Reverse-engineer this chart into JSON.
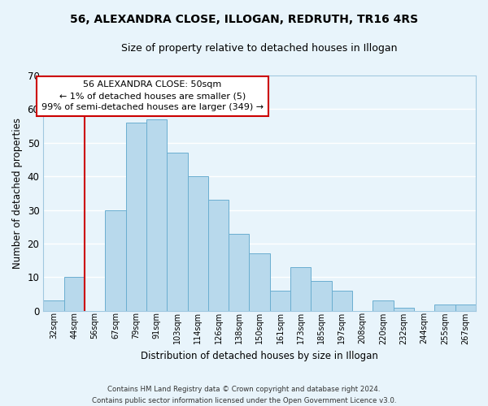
{
  "title1": "56, ALEXANDRA CLOSE, ILLOGAN, REDRUTH, TR16 4RS",
  "title2": "Size of property relative to detached houses in Illogan",
  "xlabel": "Distribution of detached houses by size in Illogan",
  "ylabel": "Number of detached properties",
  "bar_labels": [
    "32sqm",
    "44sqm",
    "56sqm",
    "67sqm",
    "79sqm",
    "91sqm",
    "103sqm",
    "114sqm",
    "126sqm",
    "138sqm",
    "150sqm",
    "161sqm",
    "173sqm",
    "185sqm",
    "197sqm",
    "208sqm",
    "220sqm",
    "232sqm",
    "244sqm",
    "255sqm",
    "267sqm"
  ],
  "bar_values": [
    3,
    10,
    0,
    30,
    56,
    57,
    47,
    40,
    33,
    23,
    17,
    6,
    13,
    9,
    6,
    0,
    3,
    1,
    0,
    2,
    2
  ],
  "bar_color": "#b8d9ec",
  "bar_edge_color": "#6aaed0",
  "vline_color": "#cc0000",
  "ylim": [
    0,
    70
  ],
  "yticks": [
    0,
    10,
    20,
    30,
    40,
    50,
    60,
    70
  ],
  "annotation_title": "56 ALEXANDRA CLOSE: 50sqm",
  "annotation_line1": "← 1% of detached houses are smaller (5)",
  "annotation_line2": "99% of semi-detached houses are larger (349) →",
  "annotation_box_color": "#ffffff",
  "annotation_box_edge": "#cc0000",
  "footer1": "Contains HM Land Registry data © Crown copyright and database right 2024.",
  "footer2": "Contains public sector information licensed under the Open Government Licence v3.0.",
  "background_color": "#e8f4fb",
  "grid_color": "#ffffff",
  "vline_position": 2.0
}
